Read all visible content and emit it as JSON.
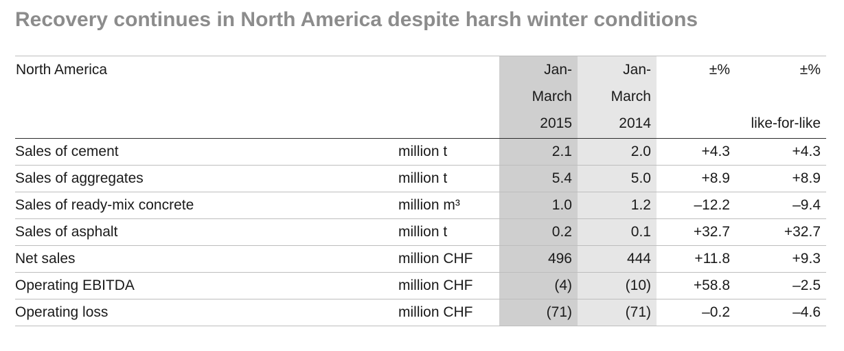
{
  "title": "Recovery continues in North America despite harsh winter conditions",
  "table": {
    "header": {
      "region": "North America",
      "col_2015": [
        "Jan-",
        "March",
        "2015"
      ],
      "col_2014": [
        "Jan-",
        "March",
        "2014"
      ],
      "col_pct": [
        "±%",
        "",
        ""
      ],
      "col_lfl": [
        "±%",
        "",
        "like-for-like"
      ]
    },
    "rows": [
      {
        "label": "Sales of cement",
        "unit": "million t",
        "v2015": "2.1",
        "v2014": "2.0",
        "pct": "+4.3",
        "lfl": "+4.3"
      },
      {
        "label": "Sales of aggregates",
        "unit": "million t",
        "v2015": "5.4",
        "v2014": "5.0",
        "pct": "+8.9",
        "lfl": "+8.9"
      },
      {
        "label": "Sales of ready-mix concrete",
        "unit": "million m³",
        "v2015": "1.0",
        "v2014": "1.2",
        "pct": "–12.2",
        "lfl": "–9.4"
      },
      {
        "label": "Sales of asphalt",
        "unit": "million t",
        "v2015": "0.2",
        "v2014": "0.1",
        "pct": "+32.7",
        "lfl": "+32.7"
      },
      {
        "label": "Net sales",
        "unit": "million CHF",
        "v2015": "496",
        "v2014": "444",
        "pct": "+11.8",
        "lfl": "+9.3"
      },
      {
        "label": "Operating EBITDA",
        "unit": "million CHF",
        "v2015": "(4)",
        "v2014": "(10)",
        "pct": "+58.8",
        "lfl": "–2.5"
      },
      {
        "label": "Operating loss",
        "unit": "million CHF",
        "v2015": "(71)",
        "v2014": "(71)",
        "pct": "–0.2",
        "lfl": "–4.6"
      }
    ]
  },
  "colors": {
    "title": "#8c8c8c",
    "shade_2015": "#cfcfcf",
    "shade_2014": "#e6e6e6"
  }
}
